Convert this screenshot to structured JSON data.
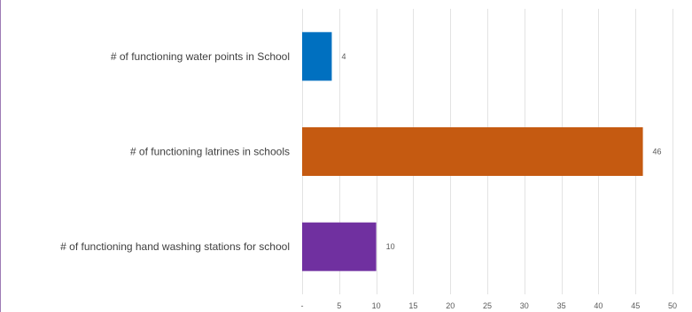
{
  "chart_data": {
    "type": "bar",
    "orientation": "horizontal",
    "categories": [
      "# of functioning water points in School",
      "# of functioning latrines in schools",
      "# of functioning hand washing stations for school"
    ],
    "values": [
      4,
      46,
      10
    ],
    "value_labels": [
      "4",
      "46",
      "10"
    ],
    "bar_colors": [
      "#0070c0",
      "#c55a11",
      "#7030a0"
    ],
    "xlim": [
      0,
      50
    ],
    "x_ticks": [
      0,
      5,
      10,
      15,
      20,
      25,
      30,
      35,
      40,
      45,
      50
    ],
    "x_tick_labels": [
      "-",
      "5",
      "10",
      "15",
      "20",
      "25",
      "30",
      "35",
      "40",
      "45",
      "50"
    ],
    "grid": true,
    "legend": "none"
  }
}
